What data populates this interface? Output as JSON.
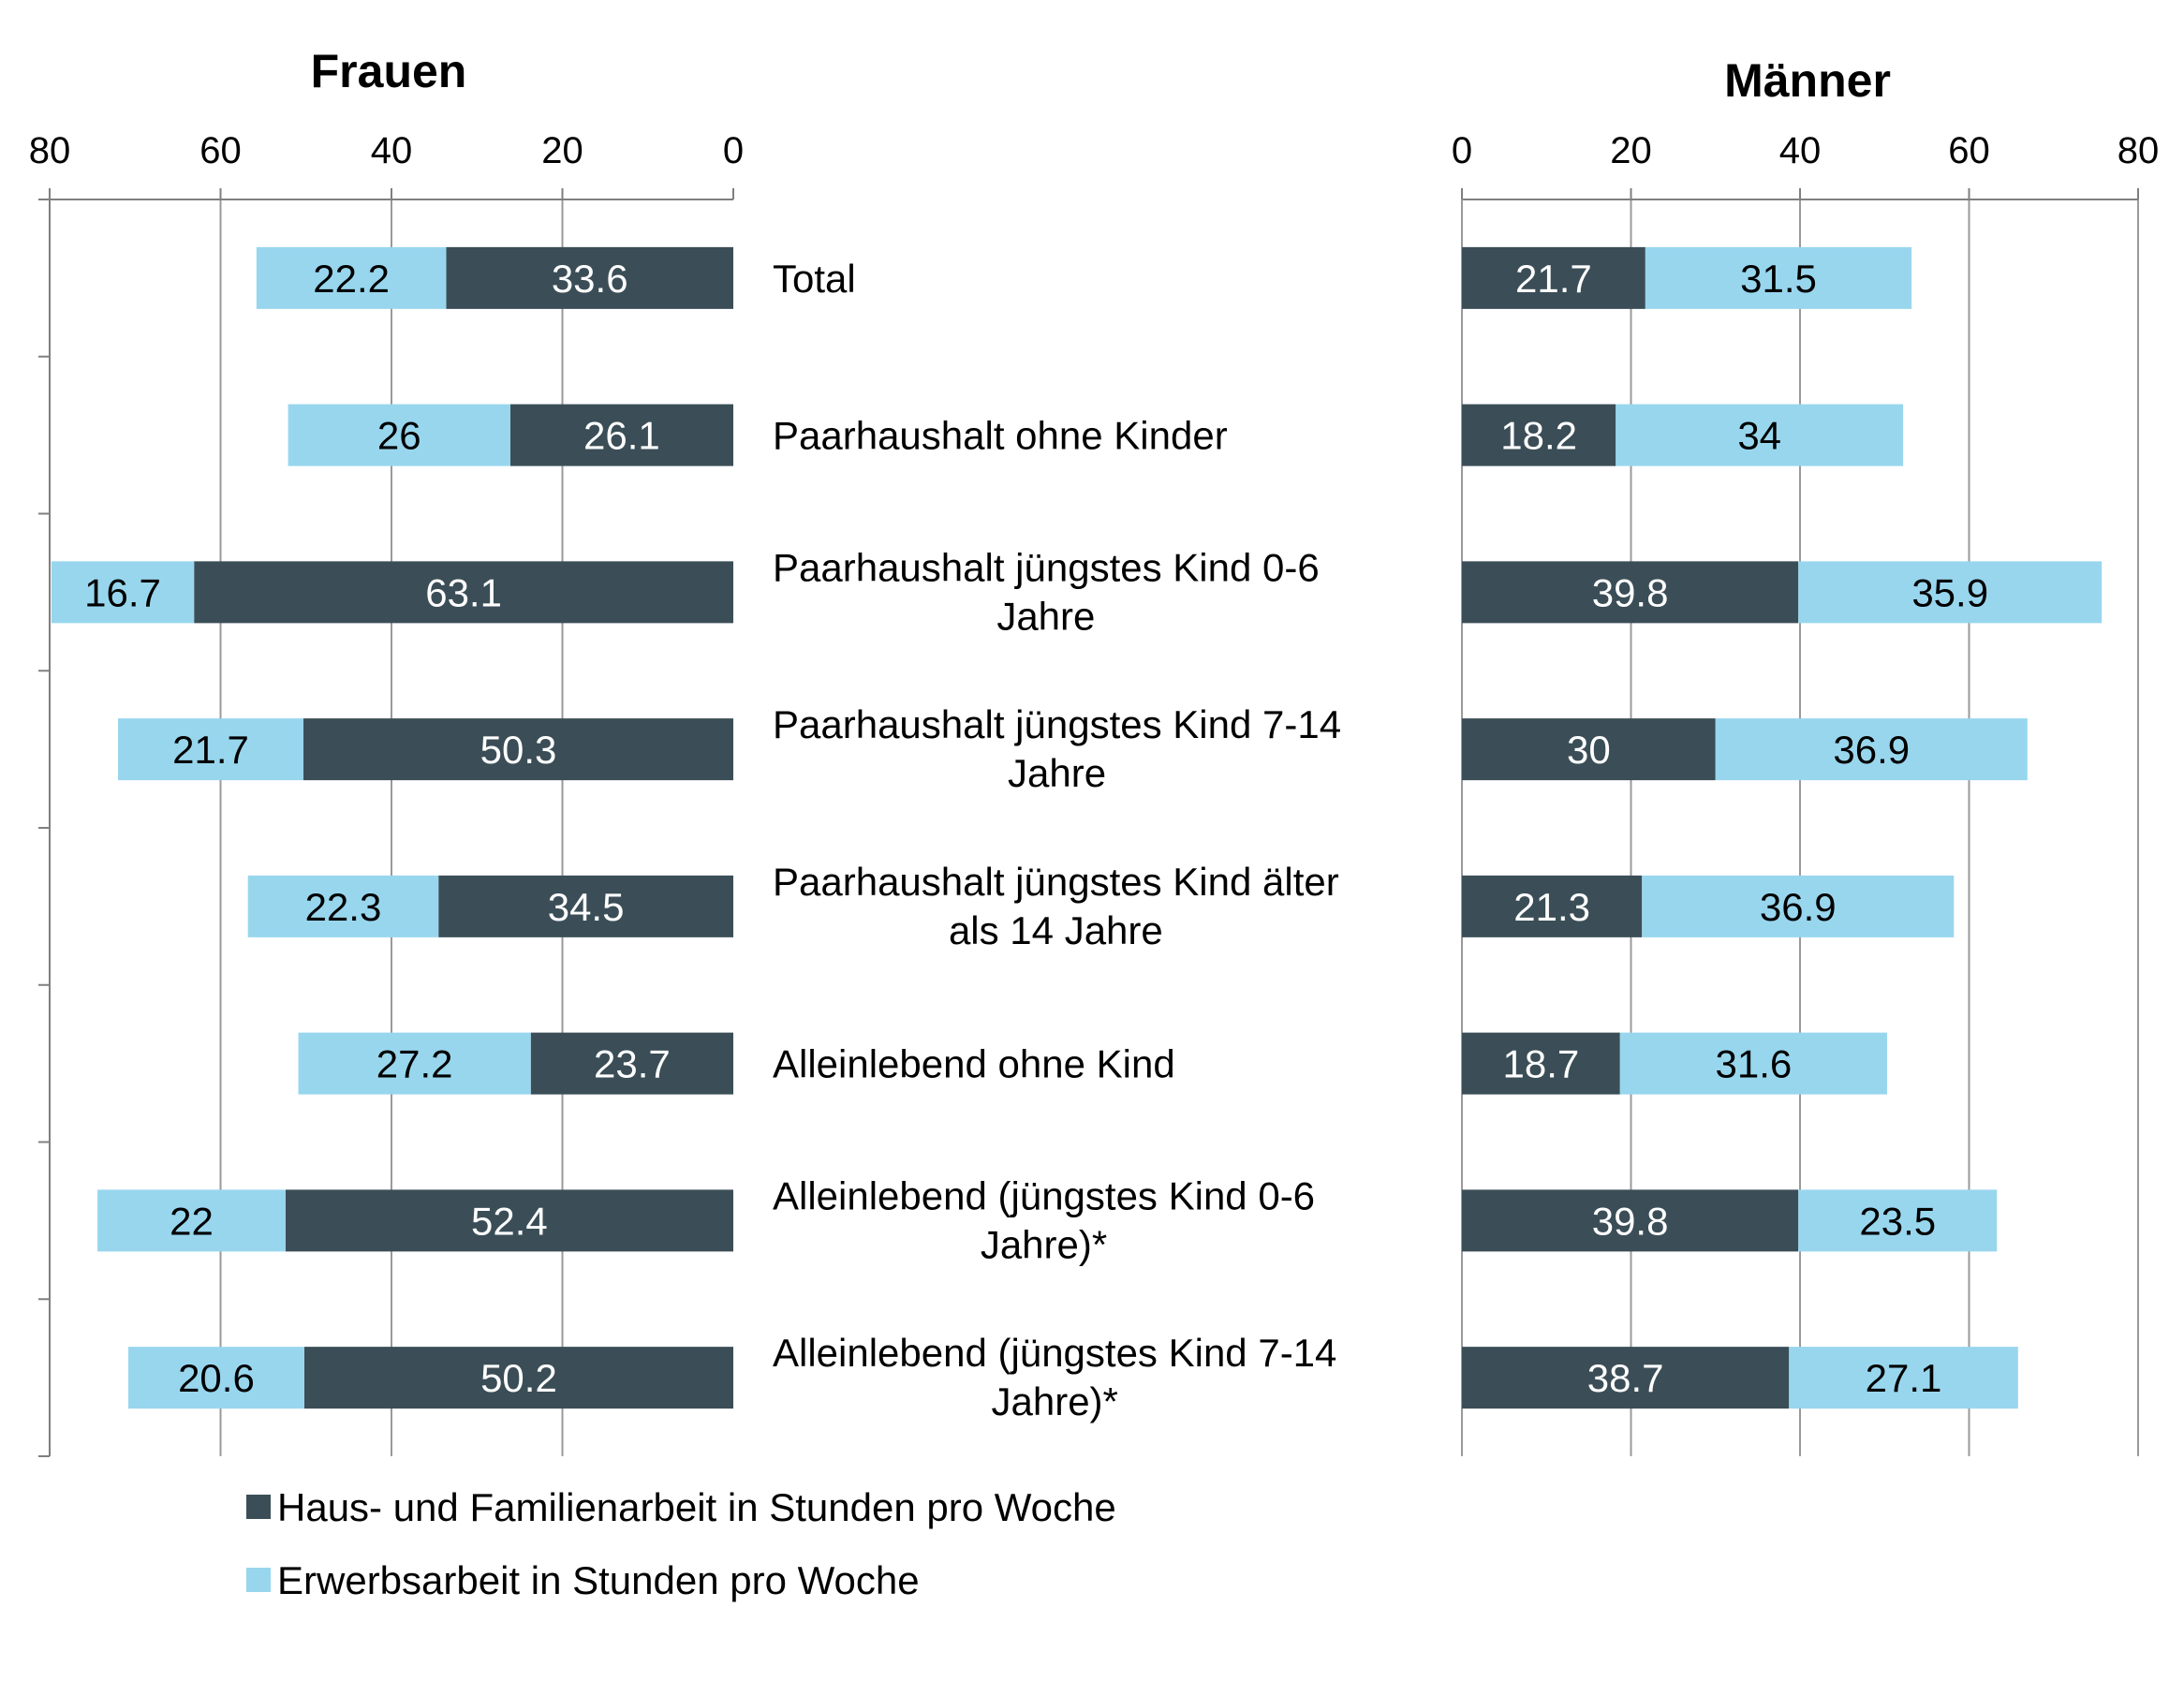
{
  "chart_data": {
    "type": "bar",
    "orientation": "horizontal",
    "stacked": true,
    "layout": "back-to-back",
    "categories": [
      "Total",
      "Paarhaushalt ohne Kinder",
      "Paarhaushalt jüngstes Kind 0-6 Jahre",
      "Paarhaushalt jüngstes Kind 7-14 Jahre",
      "Paarhaushalt jüngstes Kind älter als 14 Jahre",
      "Alleinlebend ohne Kind",
      "Alleinlebend (jüngstes Kind 0-6 Jahre)*",
      "Alleinlebend (jüngstes Kind 7-14 Jahre)*"
    ],
    "category_lines": [
      [
        "Total"
      ],
      [
        "Paarhaushalt ohne Kinder"
      ],
      [
        "Paarhaushalt jüngstes Kind 0-6",
        "Jahre"
      ],
      [
        "Paarhaushalt jüngstes Kind 7-14",
        "Jahre"
      ],
      [
        "Paarhaushalt jüngstes Kind älter",
        "als 14 Jahre"
      ],
      [
        "Alleinlebend ohne Kind"
      ],
      [
        "Alleinlebend (jüngstes Kind 0-6",
        "Jahre)*"
      ],
      [
        "Alleinlebend (jüngstes Kind 7-14",
        "Jahre)*"
      ]
    ],
    "series_names": [
      "Haus- und Familienarbeit in Stunden pro Woche",
      "Erwerbsarbeit in Stunden pro Woche"
    ],
    "colors": {
      "haus": "#3b4e57",
      "erwerb": "#98d6ee",
      "grid": "#9a9a9a",
      "axis": "#7f7f7f"
    },
    "panels": [
      {
        "title": "Frauen",
        "direction": "leftward",
        "xlim": [
          0,
          80
        ],
        "ticks": [
          0,
          20,
          40,
          60,
          80
        ],
        "grid": true,
        "series": [
          {
            "name": "Haus- und Familienarbeit in Stunden pro Woche",
            "values": [
              33.6,
              26.1,
              63.1,
              50.3,
              34.5,
              23.7,
              52.4,
              50.2
            ]
          },
          {
            "name": "Erwerbsarbeit in Stunden pro Woche",
            "values": [
              22.2,
              26,
              16.7,
              21.7,
              22.3,
              27.2,
              22,
              20.6
            ]
          }
        ]
      },
      {
        "title": "Männer",
        "direction": "rightward",
        "xlim": [
          0,
          80
        ],
        "ticks": [
          0,
          20,
          40,
          60,
          80
        ],
        "grid": true,
        "series": [
          {
            "name": "Haus- und Familienarbeit in Stunden pro Woche",
            "values": [
              21.7,
              18.2,
              39.8,
              30,
              21.3,
              18.7,
              39.8,
              38.7
            ]
          },
          {
            "name": "Erwerbsarbeit in Stunden pro Woche",
            "values": [
              31.5,
              34,
              35.9,
              36.9,
              36.9,
              31.6,
              23.5,
              27.1
            ]
          }
        ]
      }
    ],
    "legend_position": "bottom-left"
  }
}
